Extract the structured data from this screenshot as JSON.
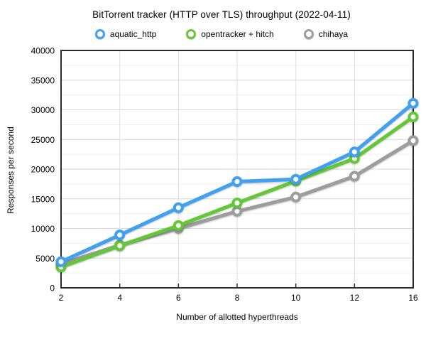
{
  "title": "BitTorrent tracker (HTTP over TLS) throughput (2022-04-11)",
  "legend": [
    {
      "label": "aquatic_http",
      "color": "#41a1f0",
      "marker": "ring-icon"
    },
    {
      "label": "opentracker + hitch",
      "color": "#62c836",
      "marker": "ring-icon"
    },
    {
      "label": "chihaya",
      "color": "#9d9d9d",
      "marker": "ring-icon"
    }
  ],
  "colors": {
    "axis_border": "#2d2d2d",
    "grid_major": "#d7d7d7",
    "grid_minor": "#efefef",
    "grid_vertical": "#dedede",
    "marker_fill": "#ffffff",
    "background": "#ffffff"
  },
  "chart_data": {
    "type": "line",
    "title": "BitTorrent tracker (HTTP over TLS) throughput (2022-04-11)",
    "xlabel": "Number of allotted hyperthreads",
    "ylabel": "Responses per second",
    "categories": [
      2,
      4,
      6,
      8,
      10,
      12,
      16
    ],
    "series": [
      {
        "name": "aquatic_http",
        "color": "#41a1f0",
        "values": [
          4400,
          8900,
          13500,
          17900,
          18300,
          22900,
          31100
        ]
      },
      {
        "name": "opentracker + hitch",
        "color": "#62c836",
        "values": [
          3500,
          7100,
          10500,
          14300,
          18000,
          21800,
          28800
        ]
      },
      {
        "name": "chihaya",
        "color": "#9d9d9d",
        "values": [
          4000,
          7200,
          10000,
          12900,
          15300,
          18800,
          24800
        ]
      }
    ],
    "ylim": [
      0,
      40000
    ],
    "y_major_step": 5000,
    "y_minor_step": 2500,
    "y_tick_labels": [
      "0",
      "5000",
      "10000",
      "15000",
      "20000",
      "25000",
      "30000",
      "35000",
      "40000"
    ],
    "x_tick_labels": [
      "2",
      "4",
      "6",
      "8",
      "10",
      "12",
      "16"
    ],
    "grid": true,
    "legend_position": "top"
  }
}
